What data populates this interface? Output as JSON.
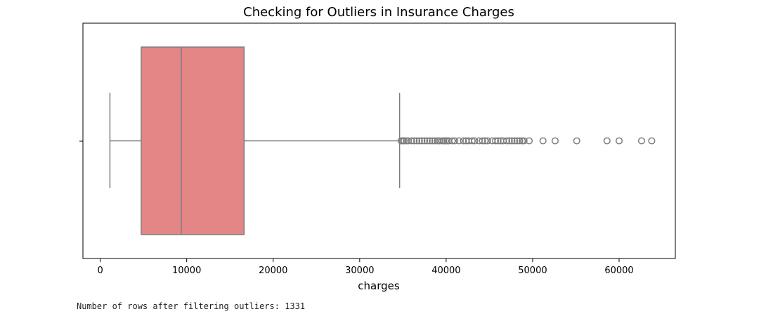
{
  "chart_data": {
    "type": "boxplot",
    "title": "Checking for Outliers in Insurance Charges",
    "xlabel": "charges",
    "ylabel": "",
    "xlim": [
      -2000,
      66500
    ],
    "xticks": [
      0,
      10000,
      20000,
      30000,
      40000,
      50000,
      60000
    ],
    "grid": false,
    "orientation": "horizontal",
    "series": [
      {
        "min_whisker": 1122,
        "q1": 4740,
        "median": 9382,
        "q3": 16640,
        "max_whisker": 34617,
        "outliers": [
          34800,
          35000,
          35150,
          35400,
          35600,
          36000,
          36300,
          36600,
          36900,
          37200,
          37500,
          37800,
          38100,
          38400,
          38700,
          39000,
          39200,
          39500,
          39700,
          39900,
          40100,
          40300,
          40700,
          41000,
          41500,
          42000,
          42300,
          42600,
          43000,
          43300,
          43800,
          44200,
          44500,
          44800,
          45300,
          45700,
          46000,
          46300,
          46600,
          47000,
          47300,
          47600,
          47900,
          48200,
          48500,
          48800,
          49000,
          49600,
          51200,
          52600,
          55100,
          58600,
          60000,
          62600,
          63770
        ]
      }
    ],
    "colors": {
      "box_fill": "#e48586",
      "line": "#7f7f7f",
      "axes": "#000000"
    }
  },
  "console": {
    "text": "Number of rows after filtering outliers: 1331"
  }
}
